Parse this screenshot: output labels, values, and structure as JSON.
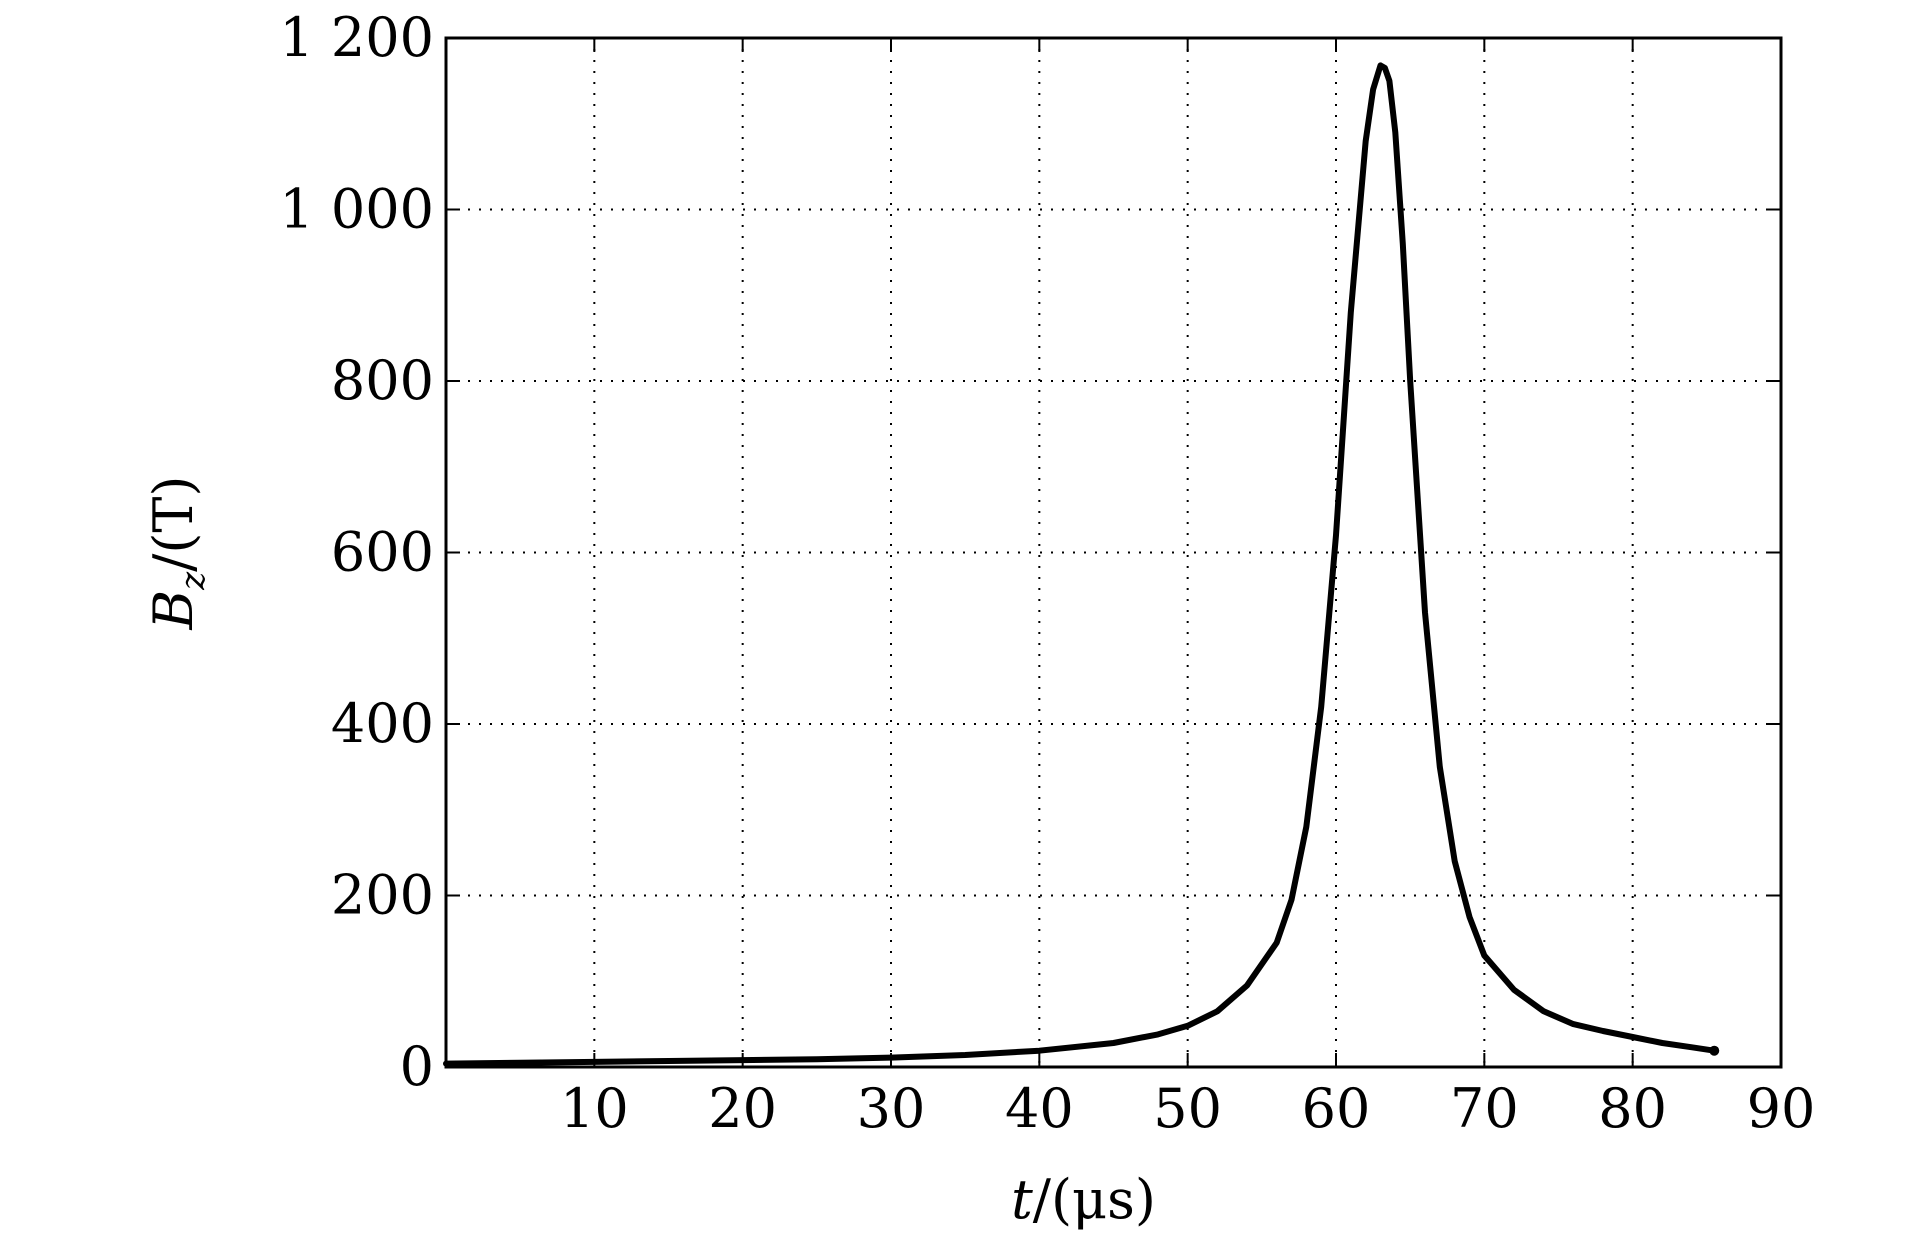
{
  "chart_data": {
    "type": "line",
    "title": "",
    "xlabel": {
      "var": "t",
      "unit": "/(μs)"
    },
    "ylabel": {
      "var": "B",
      "sub": "z",
      "unit": "/(T)"
    },
    "xlim": [
      0,
      90
    ],
    "ylim": [
      0,
      1200
    ],
    "grid": true,
    "grid_style": "dotted",
    "line_color": "#000000",
    "x_ticks": [
      10,
      20,
      30,
      40,
      50,
      60,
      70,
      80,
      90
    ],
    "x_tick_labels": [
      "10",
      "20",
      "30",
      "40",
      "50",
      "60",
      "70",
      "80",
      "90"
    ],
    "y_ticks": [
      0,
      200,
      400,
      600,
      800,
      1000,
      1200
    ],
    "y_tick_labels": [
      "0",
      "200",
      "400",
      "600",
      "800",
      "1 000",
      "1 200"
    ],
    "series": [
      {
        "x": [
          0,
          5,
          10,
          15,
          20,
          25,
          30,
          35,
          40,
          45,
          48,
          50,
          52,
          54,
          56,
          57,
          58,
          59,
          60,
          61,
          62,
          62.5,
          63,
          63.3,
          63.6,
          64,
          64.5,
          65,
          66,
          67,
          68,
          69,
          70,
          72,
          74,
          76,
          78,
          80,
          82,
          84,
          85.5
        ],
        "y": [
          4,
          5,
          6,
          7,
          8,
          9,
          11,
          14,
          19,
          28,
          38,
          48,
          65,
          95,
          145,
          195,
          280,
          420,
          620,
          880,
          1080,
          1140,
          1168,
          1165,
          1150,
          1090,
          960,
          800,
          530,
          350,
          240,
          175,
          130,
          90,
          65,
          50,
          42,
          35,
          28,
          23,
          19
        ]
      }
    ]
  }
}
